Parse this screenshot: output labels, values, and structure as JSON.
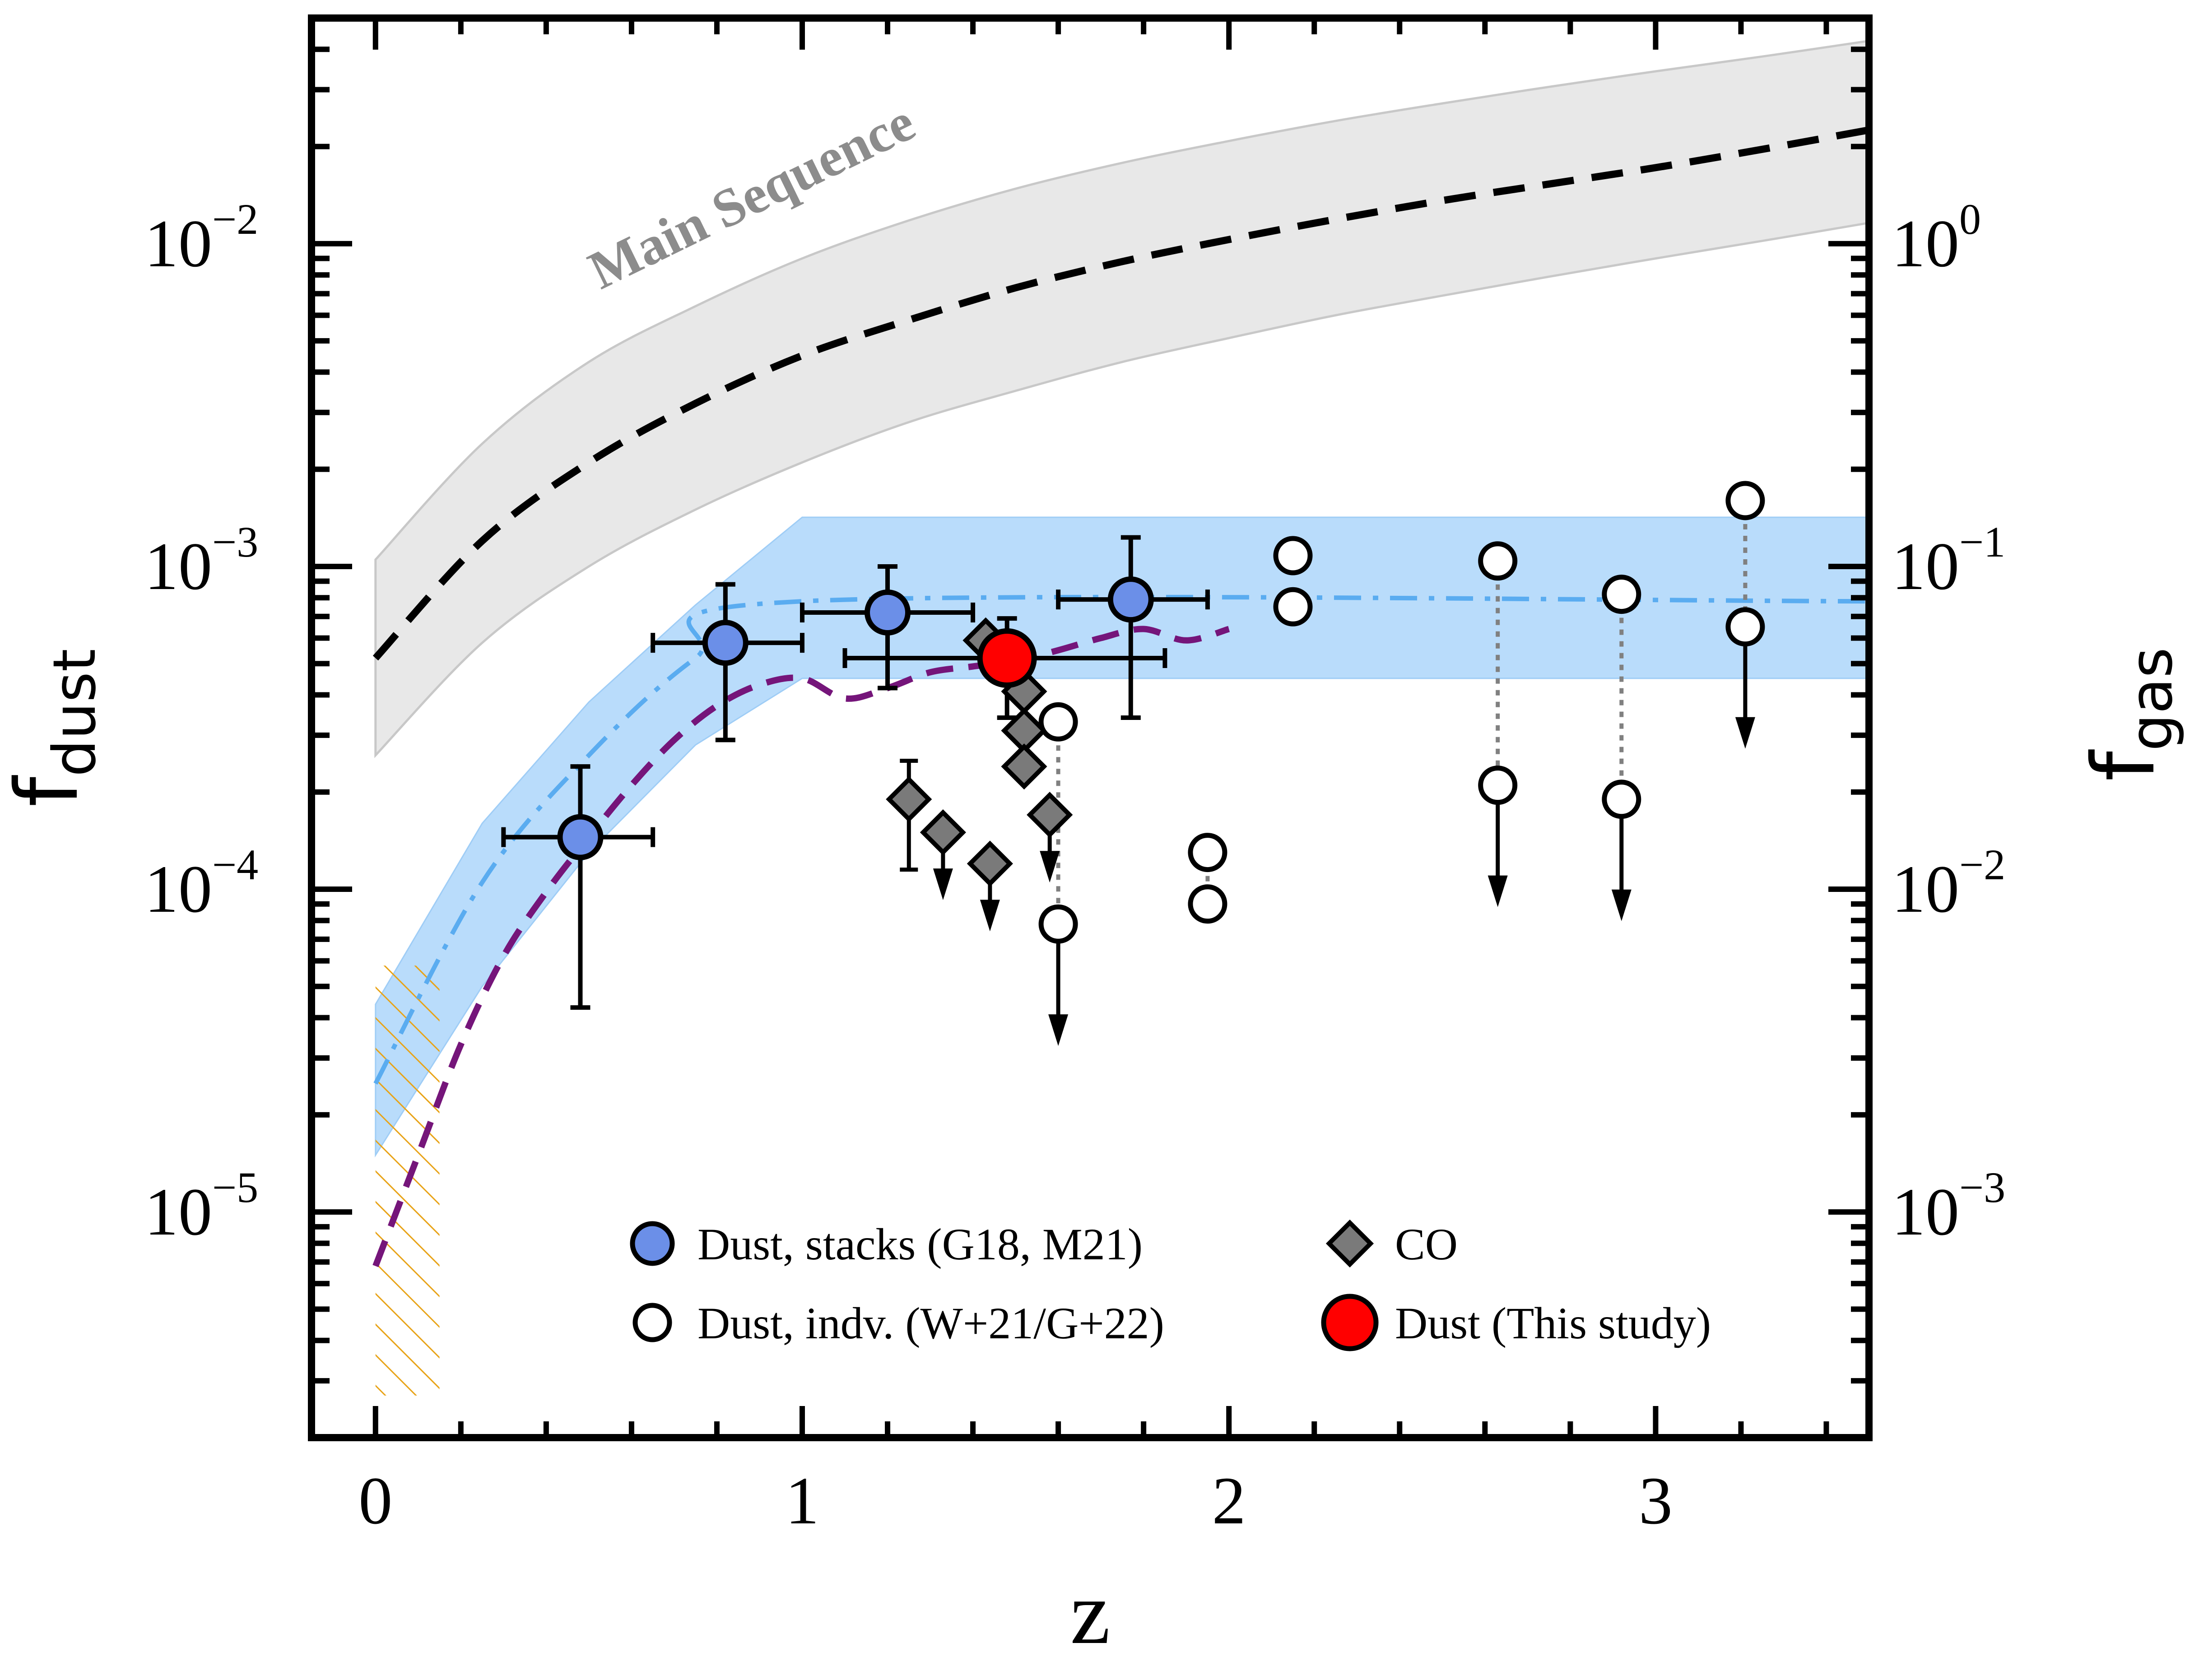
{
  "chart_data": {
    "type": "scatter",
    "xlabel": "z",
    "ylabel": "f",
    "ylabel_sub": "dust",
    "ylabel_right": "f",
    "ylabel_right_sub": "gas",
    "xlim": [
      -0.15,
      3.5
    ],
    "ylim": [
      2e-06,
      0.05
    ],
    "yscale": "log",
    "y2lim": [
      0.0002,
      5
    ],
    "y2scale": "log",
    "x_ticks": [
      {
        "value": 0,
        "label": "0"
      },
      {
        "value": 1,
        "label": "1"
      },
      {
        "value": 2,
        "label": "2"
      },
      {
        "value": 3,
        "label": "3"
      }
    ],
    "y_ticks": [
      {
        "value": 1e-05,
        "base": "10",
        "exp": "−5"
      },
      {
        "value": 0.0001,
        "base": "10",
        "exp": "−4"
      },
      {
        "value": 0.001,
        "base": "10",
        "exp": "−3"
      },
      {
        "value": 0.01,
        "base": "10",
        "exp": "−2"
      }
    ],
    "y2_ticks": [
      {
        "value": 0.001,
        "base": "10",
        "exp": "−3"
      },
      {
        "value": 0.01,
        "base": "10",
        "exp": "−2"
      },
      {
        "value": 0.1,
        "base": "10",
        "exp": "−1"
      },
      {
        "value": 1,
        "base": "10",
        "exp": "0"
      }
    ],
    "annotation": "Main Sequence",
    "main_sequence": {
      "z": [
        0,
        0.25,
        0.5,
        0.75,
        1.0,
        1.25,
        1.5,
        1.75,
        2.0,
        2.25,
        2.5,
        2.75,
        3.0,
        3.25,
        3.5
      ],
      "median": [
        0.00052,
        0.0012,
        0.0021,
        0.0032,
        0.0045,
        0.0058,
        0.0073,
        0.0088,
        0.0103,
        0.0119,
        0.0136,
        0.0153,
        0.0172,
        0.0196,
        0.0225
      ],
      "lower": [
        0.00026,
        0.00058,
        0.001,
        0.0015,
        0.0021,
        0.0028,
        0.0035,
        0.0043,
        0.0051,
        0.006,
        0.0069,
        0.0079,
        0.009,
        0.0102,
        0.0116
      ],
      "upper": [
        0.00105,
        0.0024,
        0.0043,
        0.0064,
        0.009,
        0.0118,
        0.0148,
        0.0178,
        0.0208,
        0.024,
        0.0272,
        0.0306,
        0.0342,
        0.038,
        0.0425
      ]
    },
    "model_band": {
      "z": [
        0,
        0.25,
        0.5,
        0.75,
        1.0,
        3.5
      ],
      "median": [
        2.5e-05,
        0.000105,
        0.00026,
        0.00052,
        0.00078,
        0.00078
      ],
      "lower": [
        1.5e-05,
        5e-05,
        0.00013,
        0.00028,
        0.00045,
        0.00045
      ],
      "upper": [
        4.4e-05,
        0.00016,
        0.00038,
        0.00076,
        0.00142,
        0.00142
      ]
    },
    "purple_model": {
      "z": [
        0,
        0.1,
        0.2,
        0.3,
        0.4,
        0.5,
        0.6,
        0.7,
        0.8,
        0.9,
        1.0,
        1.1,
        1.2,
        1.3,
        1.4,
        1.5,
        1.6,
        1.7,
        1.8,
        1.9,
        2.0
      ],
      "values": [
        6.8e-06,
        1.5e-05,
        3.3e-05,
        6.2e-05,
        9.8e-05,
        0.000145,
        0.00021,
        0.00029,
        0.00037,
        0.00043,
        0.00045,
        0.00039,
        0.00042,
        0.00047,
        0.00049,
        0.00051,
        0.00055,
        0.0006,
        0.00064,
        0.00059,
        0.00064
      ]
    },
    "local_constraint": {
      "z": [
        0,
        0.15
      ],
      "y": [
        2.7e-06,
        5.8e-05
      ]
    },
    "stacks": [
      {
        "z": 0.48,
        "y": 0.000145,
        "zlo": 0.3,
        "zhi": 0.65,
        "ylo": 4.3e-05,
        "yhi": 0.00024
      },
      {
        "z": 0.82,
        "y": 0.00058,
        "zlo": 0.65,
        "zhi": 1.0,
        "ylo": 0.00029,
        "yhi": 0.00088
      },
      {
        "z": 1.2,
        "y": 0.00072,
        "zlo": 1.0,
        "zhi": 1.4,
        "ylo": 0.00042,
        "yhi": 0.001
      },
      {
        "z": 1.77,
        "y": 0.00079,
        "zlo": 1.6,
        "zhi": 1.95,
        "ylo": 0.00034,
        "yhi": 0.00123
      }
    ],
    "this_study": {
      "z": 1.48,
      "y": 0.00052,
      "zlo": 1.1,
      "zhi": 1.85,
      "ylo": 0.00034,
      "yhi": 0.00069
    },
    "co": [
      {
        "z": 1.25,
        "y": 0.00019,
        "ylo": 0.000115,
        "yhi": 0.00025,
        "upper_limit": false
      },
      {
        "z": 1.33,
        "y": 0.00015,
        "upper_limit": true
      },
      {
        "z": 1.44,
        "y": 0.00012,
        "upper_limit": true
      },
      {
        "z": 1.43,
        "y": 0.00059,
        "upper_limit": false
      },
      {
        "z": 1.52,
        "y": 0.00041,
        "upper_limit": false
      },
      {
        "z": 1.52,
        "y": 0.00031,
        "upper_limit": false
      },
      {
        "z": 1.52,
        "y": 0.00024,
        "upper_limit": false
      },
      {
        "z": 1.58,
        "y": 0.00017,
        "upper_limit": true
      }
    ],
    "individuals": [
      {
        "z": 1.6,
        "y": 0.00033,
        "upper_limit": false
      },
      {
        "z": 1.6,
        "y": 7.8e-05,
        "upper_limit": true
      },
      {
        "z": 1.95,
        "y": 0.00013,
        "upper_limit": false
      },
      {
        "z": 1.95,
        "y": 9e-05,
        "upper_limit": false
      },
      {
        "z": 2.15,
        "y": 0.00108,
        "upper_limit": false
      },
      {
        "z": 2.15,
        "y": 0.00075,
        "upper_limit": false
      },
      {
        "z": 2.63,
        "y": 0.00104,
        "upper_limit": false
      },
      {
        "z": 2.63,
        "y": 0.00021,
        "upper_limit": true
      },
      {
        "z": 2.92,
        "y": 0.00082,
        "upper_limit": false
      },
      {
        "z": 2.92,
        "y": 0.00019,
        "upper_limit": true
      },
      {
        "z": 3.21,
        "y": 0.0016,
        "upper_limit": false
      },
      {
        "z": 3.21,
        "y": 0.00065,
        "upper_limit": true
      }
    ],
    "individual_links": [
      {
        "z": 1.6,
        "y_top": 0.00033,
        "y_bot": 7.8e-05
      },
      {
        "z": 1.95,
        "y_top": 0.00013,
        "y_bot": 9e-05
      },
      {
        "z": 2.63,
        "y_top": 0.00104,
        "y_bot": 0.00021
      },
      {
        "z": 2.92,
        "y_top": 0.00082,
        "y_bot": 0.00019
      },
      {
        "z": 3.21,
        "y_top": 0.0016,
        "y_bot": 0.00065
      }
    ],
    "legend": [
      {
        "label": "Dust, stacks (G18, M21)",
        "marker": "circle",
        "color": "#6b8fe8"
      },
      {
        "label": "CO",
        "marker": "diamond",
        "color": "#7a7a7a"
      },
      {
        "label": "Dust, indv. (W+21/G+22)",
        "marker": "circle-open",
        "color": "#ffffff"
      },
      {
        "label": "Dust (This study)",
        "marker": "circle-large",
        "color": "#ff0000"
      }
    ],
    "colors": {
      "main_sequence_band": "#e8e8e8",
      "main_sequence_edge": "#c8c8c8",
      "main_sequence_line": "#000000",
      "model_band": "#b9dcfb",
      "model_line": "#5aacf0",
      "purple_model": "#75157a",
      "local_hatch": "#e8a317",
      "stacks": "#6b8fe8",
      "co": "#7a7a7a",
      "this_study": "#ff0000",
      "link_line": "#808080"
    }
  }
}
